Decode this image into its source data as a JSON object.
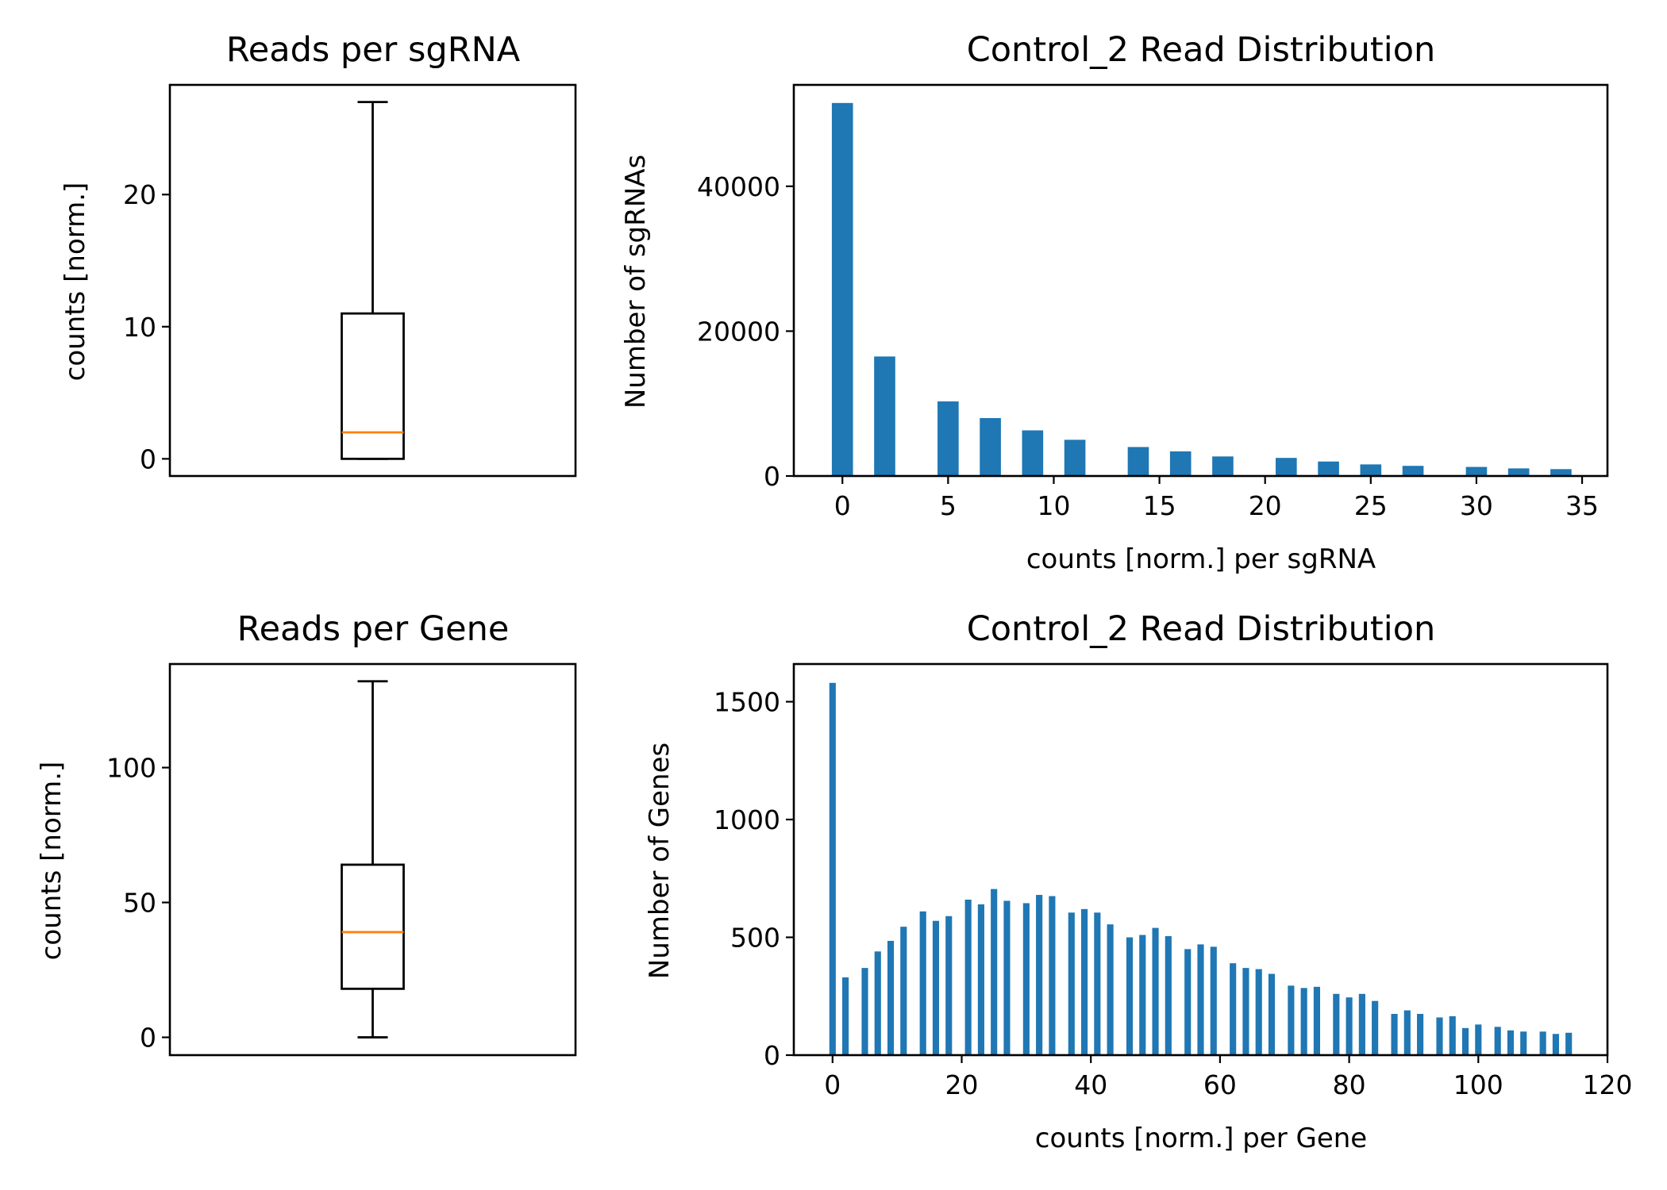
{
  "chart_data": [
    {
      "type": "box",
      "title": "Reads per sgRNA",
      "xlabel": "",
      "ylabel": "counts [norm.]",
      "ylim": [
        -1.3,
        28.3
      ],
      "yticks": [
        0,
        10,
        20
      ],
      "box": {
        "whisker_low": 0,
        "q1": 0,
        "median": 2,
        "q3": 11,
        "whisker_high": 27
      },
      "colors": {
        "box": "#000000",
        "median": "#ff7f0e"
      }
    },
    {
      "type": "bar",
      "title": "Control_2 Read Distribution",
      "xlabel": "counts [norm.] per sgRNA",
      "ylabel": "Number of sgRNAs",
      "xlim": [
        -2.3,
        36.2
      ],
      "ylim": [
        0,
        54000
      ],
      "xticks": [
        0,
        5,
        10,
        15,
        20,
        25,
        30,
        35
      ],
      "yticks": [
        0,
        20000,
        40000
      ],
      "bar_width": 1.0,
      "x": [
        0,
        2,
        5,
        7,
        9,
        11,
        14,
        16,
        18,
        21,
        23,
        25,
        27,
        30,
        32,
        34
      ],
      "values": [
        51500,
        16500,
        10300,
        8000,
        6300,
        5000,
        4000,
        3400,
        2700,
        2500,
        2000,
        1600,
        1400,
        1250,
        1050,
        950
      ],
      "colors": {
        "bar": "#1f77b4"
      }
    },
    {
      "type": "box",
      "title": "Reads per Gene",
      "xlabel": "",
      "ylabel": "counts [norm.]",
      "ylim": [
        -6.6,
        138.4
      ],
      "yticks": [
        0,
        50,
        100
      ],
      "box": {
        "whisker_low": 0,
        "q1": 18,
        "median": 39,
        "q3": 64,
        "whisker_high": 132
      },
      "colors": {
        "box": "#000000",
        "median": "#ff7f0e"
      }
    },
    {
      "type": "bar",
      "title": "Control_2 Read Distribution",
      "xlabel": "counts [norm.] per Gene",
      "ylabel": "Number of Genes",
      "xlim": [
        -6,
        120
      ],
      "ylim": [
        0,
        1660
      ],
      "xticks": [
        0,
        20,
        40,
        60,
        80,
        100,
        120
      ],
      "yticks": [
        0,
        500,
        1000,
        1500
      ],
      "bar_width": 1.0,
      "x": [
        0,
        2,
        5,
        7,
        9,
        11,
        14,
        16,
        18,
        21,
        23,
        25,
        27,
        30,
        32,
        34,
        37,
        39,
        41,
        43,
        46,
        48,
        50,
        52,
        55,
        57,
        59,
        62,
        64,
        66,
        68,
        71,
        73,
        75,
        78,
        80,
        82,
        84,
        87,
        89,
        91,
        94,
        96,
        98,
        100,
        103,
        105,
        107,
        110,
        112,
        114
      ],
      "values": [
        1580,
        330,
        370,
        440,
        485,
        545,
        610,
        570,
        590,
        660,
        640,
        705,
        655,
        645,
        680,
        675,
        605,
        620,
        605,
        555,
        500,
        510,
        540,
        505,
        450,
        470,
        460,
        390,
        370,
        365,
        345,
        295,
        285,
        290,
        260,
        245,
        260,
        230,
        175,
        190,
        175,
        160,
        165,
        115,
        130,
        120,
        105,
        100,
        100,
        90,
        95
      ],
      "colors": {
        "bar": "#1f77b4"
      }
    }
  ]
}
